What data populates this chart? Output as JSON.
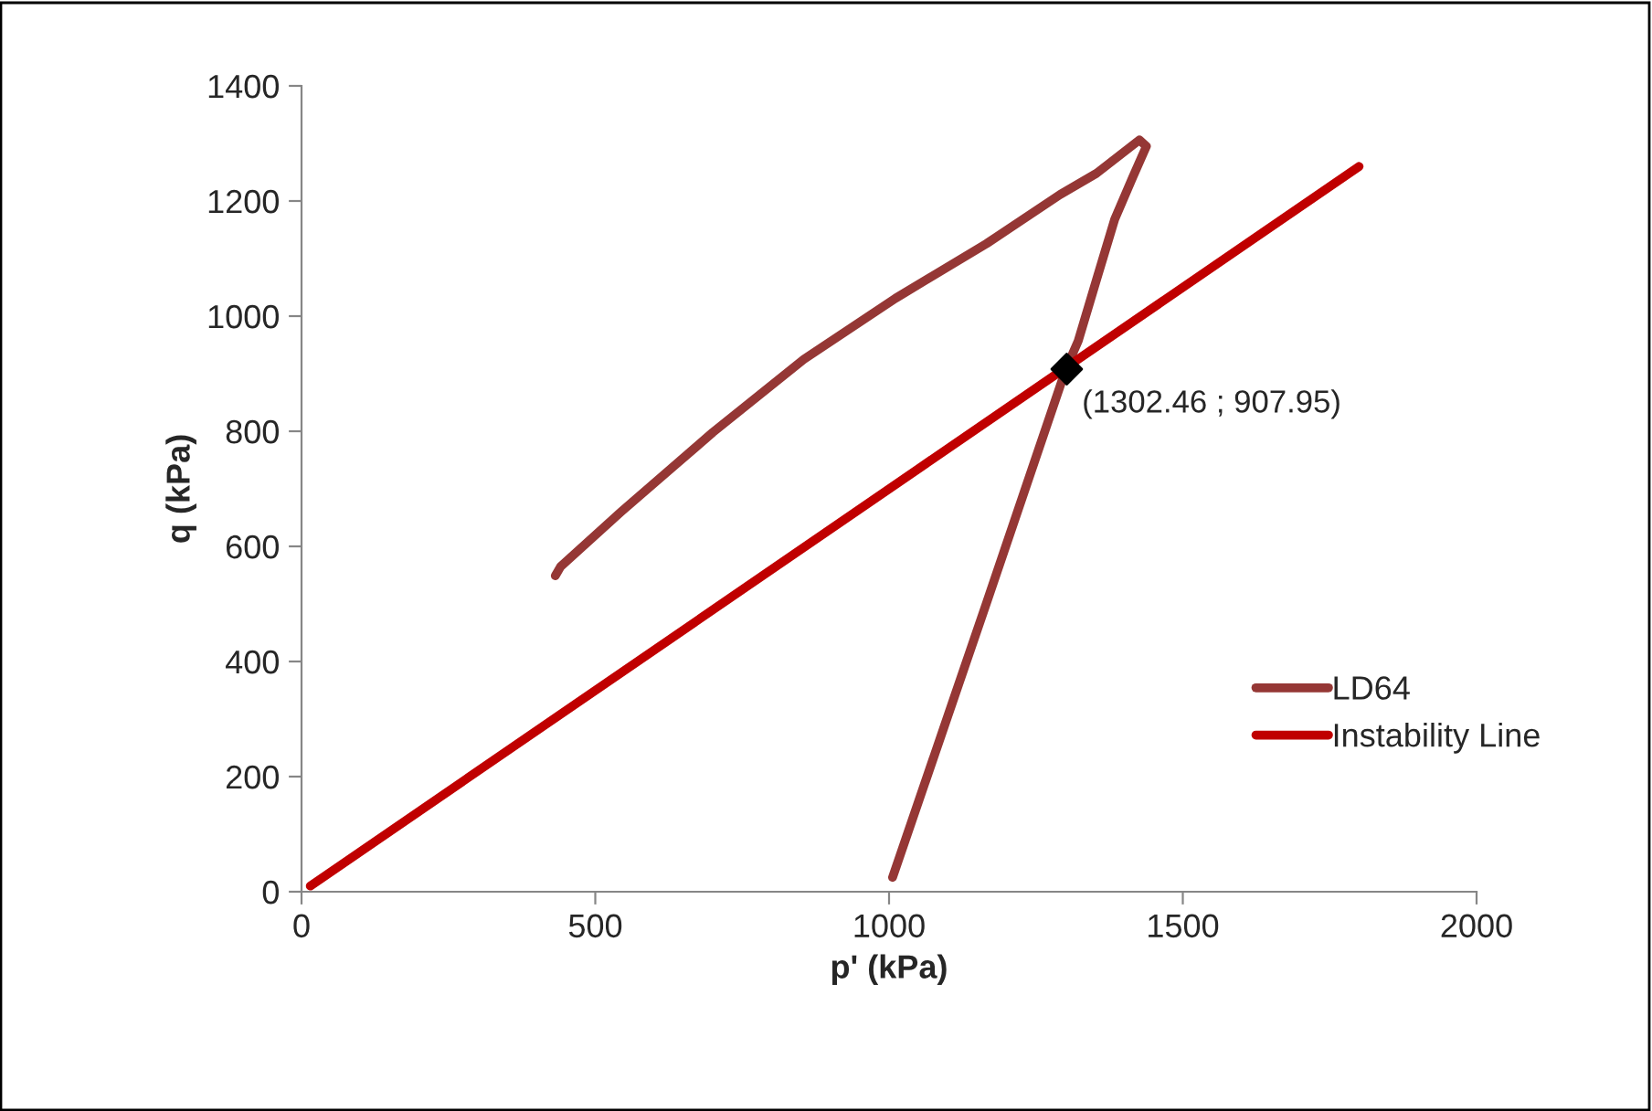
{
  "chart_data": {
    "type": "line",
    "xlabel": "p' (kPa)",
    "ylabel": "q (kPa)",
    "xlim": [
      0,
      2000
    ],
    "xticks": [
      0,
      500,
      1000,
      1500,
      2000
    ],
    "ylim": [
      0,
      1400
    ],
    "yticks": [
      0,
      200,
      400,
      600,
      800,
      1000,
      1200,
      1400
    ],
    "grid": false,
    "legend": "right",
    "marker": "none",
    "line_style": "solid",
    "series": [
      {
        "name": "LD64",
        "color": "#953735",
        "x": [
          1006,
          1166,
          1301,
          1322,
          1353,
          1384,
          1415,
          1438,
          1426,
          1353,
          1291,
          1166,
          1011,
          855,
          700,
          544,
          441,
          432
        ],
        "values": [
          25,
          502,
          908,
          957,
          1063,
          1168,
          1242,
          1295,
          1306,
          1248,
          1211,
          1126,
          1031,
          925,
          798,
          660,
          565,
          549
        ]
      },
      {
        "name": "Instability Line",
        "color": "#c00000",
        "x": [
          15,
          1800
        ],
        "values": [
          10,
          1260
        ]
      },
      {
        "type": "scatter",
        "marker": "diamond",
        "color": "#000000",
        "x": [
          1302.46
        ],
        "values": [
          907.95
        ]
      }
    ],
    "annotations": [
      {
        "text": "(1302.46 ; 907.95)",
        "x": 1302.46,
        "y": 907.95
      }
    ]
  }
}
